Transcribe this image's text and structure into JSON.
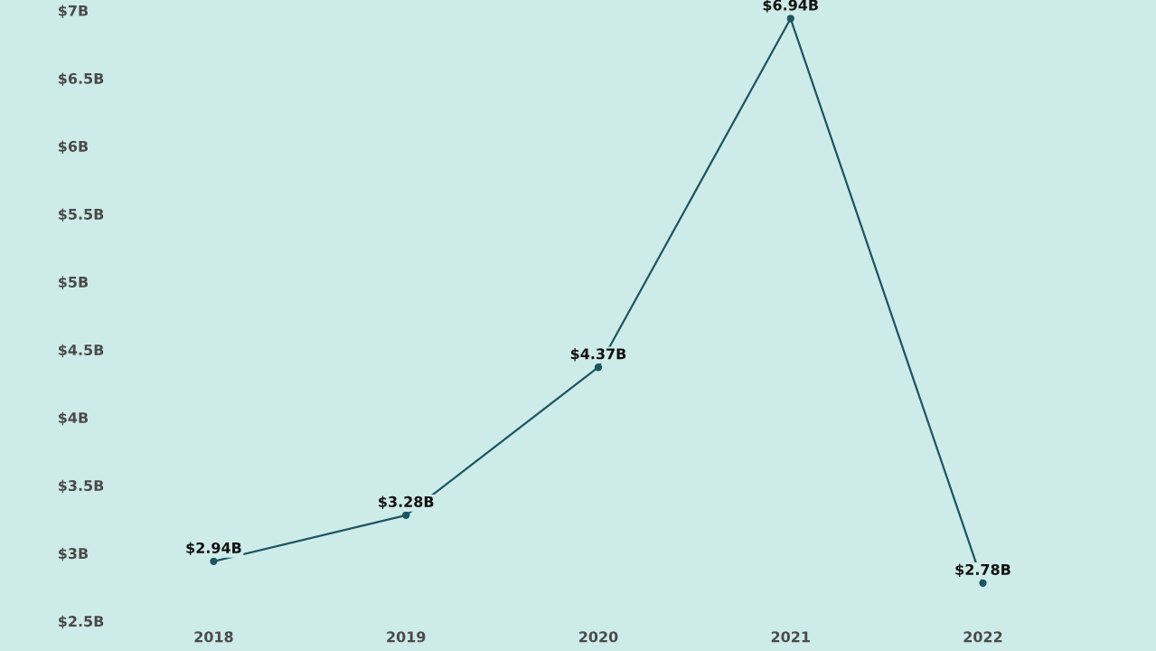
{
  "chart_data": {
    "type": "line",
    "categories": [
      "2018",
      "2019",
      "2020",
      "2021",
      "2022"
    ],
    "series": [
      {
        "color": "#1d5563",
        "values": [
          2.94,
          3.28,
          4.37,
          6.94,
          2.78
        ]
      }
    ],
    "value_labels": [
      "$2.94B",
      "$3.28B",
      "$4.37B",
      "$6.94B",
      "$2.78B"
    ],
    "ylim": [
      2.5,
      7
    ],
    "yticks": [
      {
        "value": 2.5,
        "label": "$2.5B"
      },
      {
        "value": 3,
        "label": "$3B"
      },
      {
        "value": 3.5,
        "label": "$3.5B"
      },
      {
        "value": 4,
        "label": "$4B"
      },
      {
        "value": 4.5,
        "label": "$4.5B"
      },
      {
        "value": 5,
        "label": "$5B"
      },
      {
        "value": 5.5,
        "label": "$5.5B"
      },
      {
        "value": 6,
        "label": "$6B"
      },
      {
        "value": 6.5,
        "label": "$6.5B"
      },
      {
        "value": 7,
        "label": "$7B"
      }
    ],
    "marker": "circle",
    "line_style": "solid",
    "grid": false,
    "legend": false
  }
}
